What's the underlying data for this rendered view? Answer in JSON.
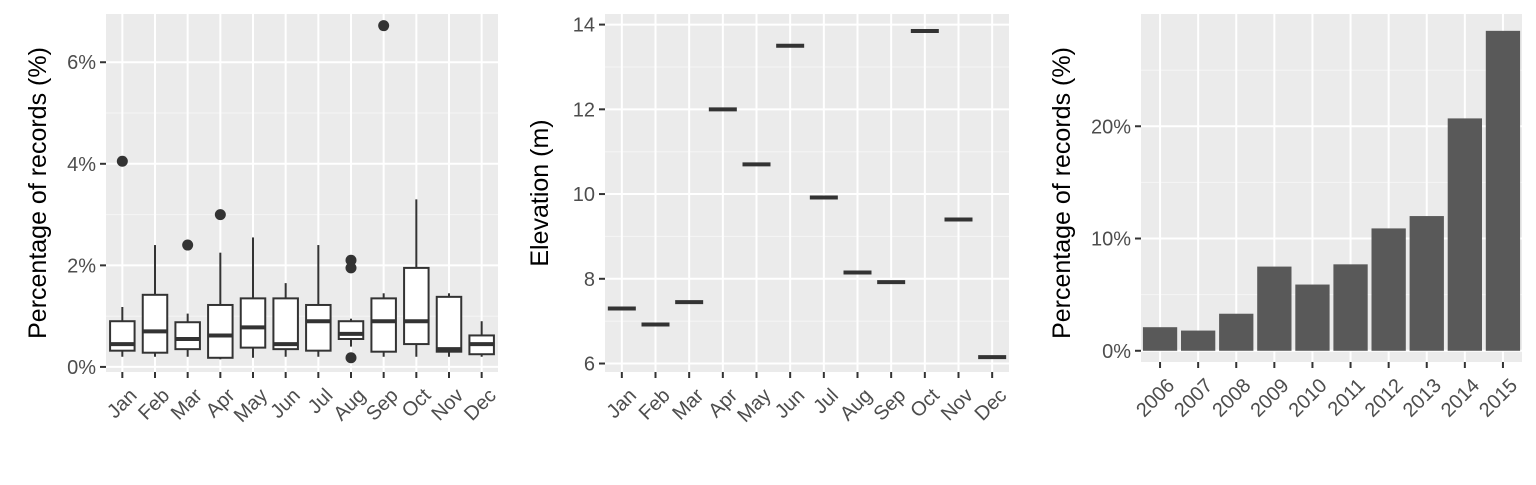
{
  "colors": {
    "panel_background": "#ebebeb",
    "grid_major": "#ffffff",
    "grid_minor": "#f5f5f5",
    "box_line": "#333333",
    "box_fill": "#ffffff",
    "outlier": "#333333",
    "bar_fill": "#595959",
    "tick_text": "#4d4d4d",
    "tick_mark": "#333333",
    "title_text": "#000000"
  },
  "chart_data": [
    {
      "type": "box",
      "xlabel": "",
      "ylabel": "Percentage of records (%)",
      "ylim": [
        -0.1,
        6.95
      ],
      "yticks": [
        0,
        2,
        4,
        6
      ],
      "ytick_labels": [
        "0%",
        "2%",
        "4%",
        "6%"
      ],
      "categories": [
        "Jan",
        "Feb",
        "Mar",
        "Apr",
        "May",
        "Jun",
        "Jul",
        "Aug",
        "Sep",
        "Oct",
        "Nov",
        "Dec"
      ],
      "boxes": [
        {
          "min": 0.2,
          "q1": 0.32,
          "median": 0.45,
          "q3": 0.9,
          "max": 1.18,
          "outliers": [
            4.05
          ]
        },
        {
          "min": 0.2,
          "q1": 0.28,
          "median": 0.7,
          "q3": 1.42,
          "max": 2.4,
          "outliers": []
        },
        {
          "min": 0.2,
          "q1": 0.35,
          "median": 0.55,
          "q3": 0.88,
          "max": 1.05,
          "outliers": [
            2.4
          ]
        },
        {
          "min": 0.15,
          "q1": 0.18,
          "median": 0.62,
          "q3": 1.22,
          "max": 2.25,
          "outliers": [
            3.0
          ]
        },
        {
          "min": 0.18,
          "q1": 0.38,
          "median": 0.78,
          "q3": 1.35,
          "max": 2.55,
          "outliers": []
        },
        {
          "min": 0.2,
          "q1": 0.35,
          "median": 0.45,
          "q3": 1.35,
          "max": 1.65,
          "outliers": []
        },
        {
          "min": 0.2,
          "q1": 0.32,
          "median": 0.9,
          "q3": 1.22,
          "max": 2.4,
          "outliers": []
        },
        {
          "min": 0.4,
          "q1": 0.55,
          "median": 0.65,
          "q3": 0.9,
          "max": 0.95,
          "outliers": [
            2.1,
            1.95,
            0.18
          ]
        },
        {
          "min": 0.2,
          "q1": 0.3,
          "median": 0.9,
          "q3": 1.35,
          "max": 1.45,
          "outliers": [
            6.72
          ]
        },
        {
          "min": 0.2,
          "q1": 0.45,
          "median": 0.9,
          "q3": 1.95,
          "max": 3.3,
          "outliers": []
        },
        {
          "min": 0.2,
          "q1": 0.3,
          "median": 0.35,
          "q3": 1.38,
          "max": 1.45,
          "outliers": []
        },
        {
          "min": 0.2,
          "q1": 0.25,
          "median": 0.45,
          "q3": 0.62,
          "max": 0.9,
          "outliers": []
        }
      ]
    },
    {
      "type": "scatter",
      "marker": "horizontal-bar",
      "xlabel": "",
      "ylabel": "Elevation (m)",
      "ylim": [
        5.8,
        14.25
      ],
      "yticks": [
        6,
        8,
        10,
        12,
        14
      ],
      "ytick_labels": [
        "6",
        "8",
        "10",
        "12",
        "14"
      ],
      "categories": [
        "Jan",
        "Feb",
        "Mar",
        "Apr",
        "May",
        "Jun",
        "Jul",
        "Aug",
        "Sep",
        "Oct",
        "Nov",
        "Dec"
      ],
      "values": [
        7.3,
        6.92,
        7.45,
        12.0,
        10.7,
        13.5,
        9.92,
        8.15,
        7.92,
        13.85,
        9.4,
        6.15
      ]
    },
    {
      "type": "bar",
      "xlabel": "",
      "ylabel": "Percentage of records (%)",
      "ylim": [
        -1.0,
        30.0
      ],
      "yticks": [
        0,
        10,
        20
      ],
      "ytick_labels": [
        "0%",
        "10%",
        "20%"
      ],
      "categories": [
        "2006",
        "2007",
        "2008",
        "2009",
        "2010",
        "2011",
        "2012",
        "2013",
        "2014",
        "2015"
      ],
      "values": [
        2.1,
        1.8,
        3.3,
        7.5,
        5.9,
        7.7,
        10.9,
        12.0,
        20.7,
        28.5
      ]
    }
  ]
}
